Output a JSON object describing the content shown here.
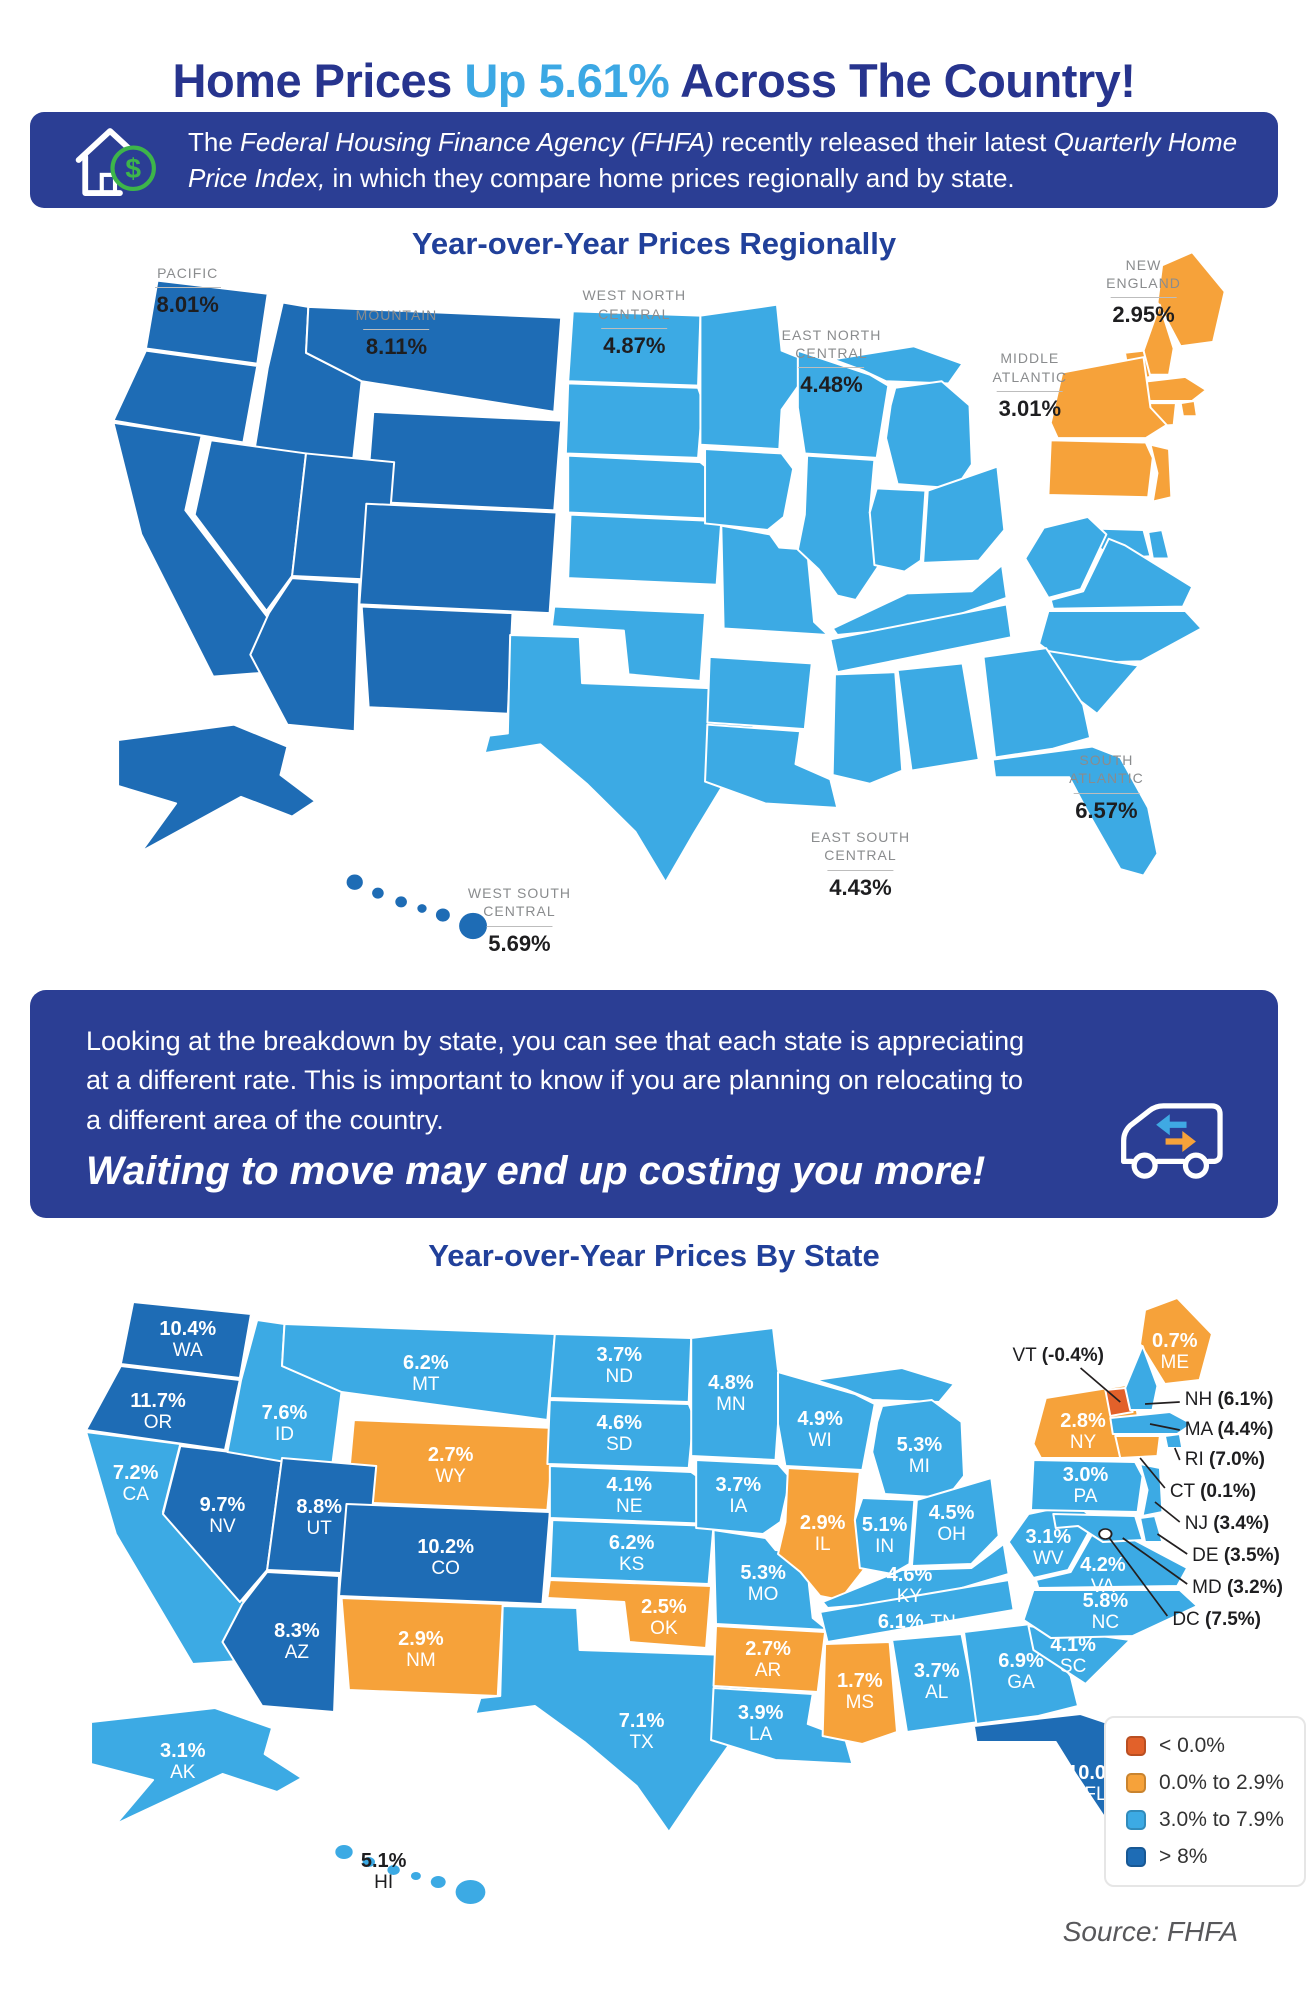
{
  "title": {
    "part1": "Home Prices ",
    "highlight": "Up 5.61%",
    "part2": " Across The Country!"
  },
  "banner": {
    "icon": "house-dollar-icon",
    "segments": [
      {
        "text": "The ",
        "italic": false
      },
      {
        "text": "Federal Housing Finance Agency (FHFA)",
        "italic": true
      },
      {
        "text": " recently released their latest ",
        "italic": false
      },
      {
        "text": "Quarterly Home Price Index,",
        "italic": true
      },
      {
        "text": " in which they compare home prices regionally and by state.",
        "italic": false
      }
    ]
  },
  "regional_map": {
    "heading": "Year-over-Year Prices Regionally",
    "regions": [
      {
        "id": "pacific",
        "name_lines": [
          "PACIFIC"
        ],
        "value": "8.01%",
        "bucket": "gt8",
        "states": [
          "WA",
          "OR",
          "CA",
          "AK",
          "HI"
        ]
      },
      {
        "id": "mountain",
        "name_lines": [
          "MOUNTAIN"
        ],
        "value": "8.11%",
        "bucket": "gt8",
        "states": [
          "ID",
          "MT",
          "WY",
          "NV",
          "UT",
          "CO",
          "AZ",
          "NM"
        ]
      },
      {
        "id": "west_north_central",
        "name_lines": [
          "WEST NORTH",
          "CENTRAL"
        ],
        "value": "4.87%",
        "bucket": "mid",
        "states": [
          "ND",
          "SD",
          "NE",
          "KS",
          "MN",
          "IA",
          "MO"
        ]
      },
      {
        "id": "east_north_central",
        "name_lines": [
          "EAST NORTH",
          "CENTRAL"
        ],
        "value": "4.48%",
        "bucket": "mid",
        "states": [
          "WI",
          "IL",
          "MI",
          "IN",
          "OH"
        ]
      },
      {
        "id": "new_england",
        "name_lines": [
          "NEW",
          "ENGLAND"
        ],
        "value": "2.95%",
        "bucket": "low",
        "states": [
          "ME",
          "NH",
          "VT",
          "MA",
          "RI",
          "CT"
        ]
      },
      {
        "id": "middle_atlantic",
        "name_lines": [
          "MIDDLE",
          "ATLANTIC"
        ],
        "value": "3.01%",
        "bucket": "low",
        "states": [
          "NY",
          "PA",
          "NJ"
        ]
      },
      {
        "id": "south_atlantic",
        "name_lines": [
          "SOUTH",
          "ATLANTIC"
        ],
        "value": "6.57%",
        "bucket": "mid",
        "states": [
          "DE",
          "MD",
          "WV",
          "VA",
          "NC",
          "SC",
          "GA",
          "FL"
        ]
      },
      {
        "id": "east_south_central",
        "name_lines": [
          "EAST SOUTH",
          "CENTRAL"
        ],
        "value": "4.43%",
        "bucket": "mid",
        "states": [
          "KY",
          "TN",
          "MS",
          "AL"
        ]
      },
      {
        "id": "west_south_central",
        "name_lines": [
          "WEST SOUTH",
          "CENTRAL"
        ],
        "value": "5.69%",
        "bucket": "mid",
        "states": [
          "OK",
          "TX",
          "AR",
          "LA"
        ]
      }
    ]
  },
  "message_box": {
    "lines": [
      "Looking at the breakdown by state, you can see that each state is appreciating",
      "at a different rate. This is important to know if you are planning on relocating to",
      "a different area of the country."
    ],
    "emphasis": "Waiting to move may end up costing you more!",
    "icon": "moving-truck-icon"
  },
  "state_map": {
    "heading": "Year-over-Year Prices By State",
    "states": [
      {
        "abbr": "WA",
        "label": "10.4%",
        "value": 10.4,
        "bucket": "gt8"
      },
      {
        "abbr": "OR",
        "label": "11.7%",
        "value": 11.7,
        "bucket": "gt8"
      },
      {
        "abbr": "CA",
        "label": "7.2%",
        "value": 7.2,
        "bucket": "mid"
      },
      {
        "abbr": "NV",
        "label": "9.7%",
        "value": 9.7,
        "bucket": "gt8"
      },
      {
        "abbr": "ID",
        "label": "7.6%",
        "value": 7.6,
        "bucket": "mid"
      },
      {
        "abbr": "MT",
        "label": "6.2%",
        "value": 6.2,
        "bucket": "mid"
      },
      {
        "abbr": "WY",
        "label": "2.7%",
        "value": 2.7,
        "bucket": "low"
      },
      {
        "abbr": "UT",
        "label": "8.8%",
        "value": 8.8,
        "bucket": "gt8"
      },
      {
        "abbr": "CO",
        "label": "10.2%",
        "value": 10.2,
        "bucket": "gt8"
      },
      {
        "abbr": "AZ",
        "label": "8.3%",
        "value": 8.3,
        "bucket": "gt8"
      },
      {
        "abbr": "NM",
        "label": "2.9%",
        "value": 2.9,
        "bucket": "low"
      },
      {
        "abbr": "ND",
        "label": "3.7%",
        "value": 3.7,
        "bucket": "mid"
      },
      {
        "abbr": "SD",
        "label": "4.6%",
        "value": 4.6,
        "bucket": "mid"
      },
      {
        "abbr": "NE",
        "label": "4.1%",
        "value": 4.1,
        "bucket": "mid"
      },
      {
        "abbr": "KS",
        "label": "6.2%",
        "value": 6.2,
        "bucket": "mid"
      },
      {
        "abbr": "OK",
        "label": "2.5%",
        "value": 2.5,
        "bucket": "low"
      },
      {
        "abbr": "TX",
        "label": "7.1%",
        "value": 7.1,
        "bucket": "mid"
      },
      {
        "abbr": "MN",
        "label": "4.8%",
        "value": 4.8,
        "bucket": "mid"
      },
      {
        "abbr": "IA",
        "label": "3.7%",
        "value": 3.7,
        "bucket": "mid"
      },
      {
        "abbr": "MO",
        "label": "5.3%",
        "value": 5.3,
        "bucket": "mid"
      },
      {
        "abbr": "AR",
        "label": "2.7%",
        "value": 2.7,
        "bucket": "low"
      },
      {
        "abbr": "LA",
        "label": "3.9%",
        "value": 3.9,
        "bucket": "mid"
      },
      {
        "abbr": "WI",
        "label": "4.9%",
        "value": 4.9,
        "bucket": "mid"
      },
      {
        "abbr": "IL",
        "label": "2.9%",
        "value": 2.9,
        "bucket": "low"
      },
      {
        "abbr": "MI",
        "label": "5.3%",
        "value": 5.3,
        "bucket": "mid"
      },
      {
        "abbr": "IN",
        "label": "5.1%",
        "value": 5.1,
        "bucket": "mid"
      },
      {
        "abbr": "OH",
        "label": "4.5%",
        "value": 4.5,
        "bucket": "mid"
      },
      {
        "abbr": "KY",
        "label": "4.6%",
        "value": 4.6,
        "bucket": "mid"
      },
      {
        "abbr": "TN",
        "label": "6.1%",
        "value": 6.1,
        "bucket": "mid"
      },
      {
        "abbr": "MS",
        "label": "1.7%",
        "value": 1.7,
        "bucket": "low"
      },
      {
        "abbr": "AL",
        "label": "3.7%",
        "value": 3.7,
        "bucket": "mid"
      },
      {
        "abbr": "GA",
        "label": "6.9%",
        "value": 6.9,
        "bucket": "mid"
      },
      {
        "abbr": "FL",
        "label": "10.0%",
        "value": 10.0,
        "bucket": "gt8"
      },
      {
        "abbr": "SC",
        "label": "4.1%",
        "value": 4.1,
        "bucket": "mid"
      },
      {
        "abbr": "NC",
        "label": "5.8%",
        "value": 5.8,
        "bucket": "mid"
      },
      {
        "abbr": "VA",
        "label": "4.2%",
        "value": 4.2,
        "bucket": "mid"
      },
      {
        "abbr": "WV",
        "label": "3.1%",
        "value": 3.1,
        "bucket": "mid"
      },
      {
        "abbr": "PA",
        "label": "3.0%",
        "value": 3.0,
        "bucket": "mid"
      },
      {
        "abbr": "NY",
        "label": "2.8%",
        "value": 2.8,
        "bucket": "low"
      },
      {
        "abbr": "ME",
        "label": "0.7%",
        "value": 0.7,
        "bucket": "low"
      },
      {
        "abbr": "AK",
        "label": "3.1%",
        "value": 3.1,
        "bucket": "mid"
      },
      {
        "abbr": "HI",
        "label": "5.1%",
        "value": 5.1,
        "bucket": "mid"
      },
      {
        "abbr": "VT",
        "label": "-0.4%",
        "value": -0.4,
        "bucket": "lt0",
        "callout": true
      },
      {
        "abbr": "NH",
        "label": "6.1%",
        "value": 6.1,
        "bucket": "mid",
        "callout": true
      },
      {
        "abbr": "MA",
        "label": "4.4%",
        "value": 4.4,
        "bucket": "mid",
        "callout": true
      },
      {
        "abbr": "RI",
        "label": "7.0%",
        "value": 7.0,
        "bucket": "mid",
        "callout": true
      },
      {
        "abbr": "CT",
        "label": "0.1%",
        "value": 0.1,
        "bucket": "low",
        "callout": true
      },
      {
        "abbr": "NJ",
        "label": "3.4%",
        "value": 3.4,
        "bucket": "mid",
        "callout": true
      },
      {
        "abbr": "DE",
        "label": "3.5%",
        "value": 3.5,
        "bucket": "mid",
        "callout": true
      },
      {
        "abbr": "MD",
        "label": "3.2%",
        "value": 3.2,
        "bucket": "mid",
        "callout": true
      },
      {
        "abbr": "DC",
        "label": "7.5%",
        "value": 7.5,
        "bucket": "mid",
        "callout": true
      }
    ]
  },
  "legend": {
    "items": [
      {
        "label": "< 0.0%",
        "bucket": "lt0"
      },
      {
        "label": "0.0% to 2.9%",
        "bucket": "low"
      },
      {
        "label": "3.0% to 7.9%",
        "bucket": "mid"
      },
      {
        "label": "> 8%",
        "bucket": "gt8"
      }
    ]
  },
  "source": "Source: FHFA",
  "palette": {
    "navy_text": "#27348E",
    "accent_blue": "#3CA8E4",
    "heading_blue": "#21409A",
    "box_bg": "#2B3E94",
    "bucket_lt0": "#E2612A",
    "bucket_low": "#F6A23A",
    "bucket_mid": "#3CAAE4",
    "bucket_gt8": "#1E6CB5",
    "label_gray": "#8A8C8E",
    "value_dark": "#1E1E20",
    "divider_gray": "#BDBDBD",
    "source_gray": "#58585B",
    "icon_green": "#3DB54A",
    "callout_line": "#231F20",
    "legend_border": "#E6E6E6",
    "legend_text": "#333333"
  },
  "chart_data": [
    {
      "type": "choropleth_map",
      "title": "Year-over-Year Prices Regionally",
      "unit": "percent change year-over-year",
      "regions": [
        {
          "name": "Pacific",
          "value": 8.01
        },
        {
          "name": "Mountain",
          "value": 8.11
        },
        {
          "name": "West North Central",
          "value": 4.87
        },
        {
          "name": "East North Central",
          "value": 4.48
        },
        {
          "name": "New England",
          "value": 2.95
        },
        {
          "name": "Middle Atlantic",
          "value": 3.01
        },
        {
          "name": "South Atlantic",
          "value": 6.57
        },
        {
          "name": "East South Central",
          "value": 4.43
        },
        {
          "name": "West South Central",
          "value": 5.69
        }
      ]
    },
    {
      "type": "choropleth_map",
      "title": "Year-over-Year Prices By State",
      "unit": "percent change year-over-year",
      "legend_buckets": [
        {
          "label": "< 0.0%",
          "color": "#E2612A"
        },
        {
          "label": "0.0% to 2.9%",
          "color": "#F6A23A"
        },
        {
          "label": "3.0% to 7.9%",
          "color": "#3CAAE4"
        },
        {
          "label": "> 8%",
          "color": "#1E6CB5"
        }
      ],
      "values": {
        "WA": 10.4,
        "OR": 11.7,
        "CA": 7.2,
        "NV": 9.7,
        "ID": 7.6,
        "MT": 6.2,
        "WY": 2.7,
        "UT": 8.8,
        "CO": 10.2,
        "AZ": 8.3,
        "NM": 2.9,
        "AK": 3.1,
        "HI": 5.1,
        "ND": 3.7,
        "SD": 4.6,
        "NE": 4.1,
        "KS": 6.2,
        "OK": 2.5,
        "TX": 7.1,
        "MN": 4.8,
        "IA": 3.7,
        "MO": 5.3,
        "AR": 2.7,
        "LA": 3.9,
        "WI": 4.9,
        "IL": 2.9,
        "MI": 5.3,
        "IN": 5.1,
        "OH": 4.5,
        "KY": 4.6,
        "TN": 6.1,
        "MS": 1.7,
        "AL": 3.7,
        "GA": 6.9,
        "FL": 10.0,
        "SC": 4.1,
        "NC": 5.8,
        "VA": 4.2,
        "WV": 3.1,
        "PA": 3.0,
        "NY": 2.8,
        "ME": 0.7,
        "VT": -0.4,
        "NH": 6.1,
        "MA": 4.4,
        "RI": 7.0,
        "CT": 0.1,
        "NJ": 3.4,
        "DE": 3.5,
        "MD": 3.2,
        "DC": 7.5
      }
    }
  ]
}
